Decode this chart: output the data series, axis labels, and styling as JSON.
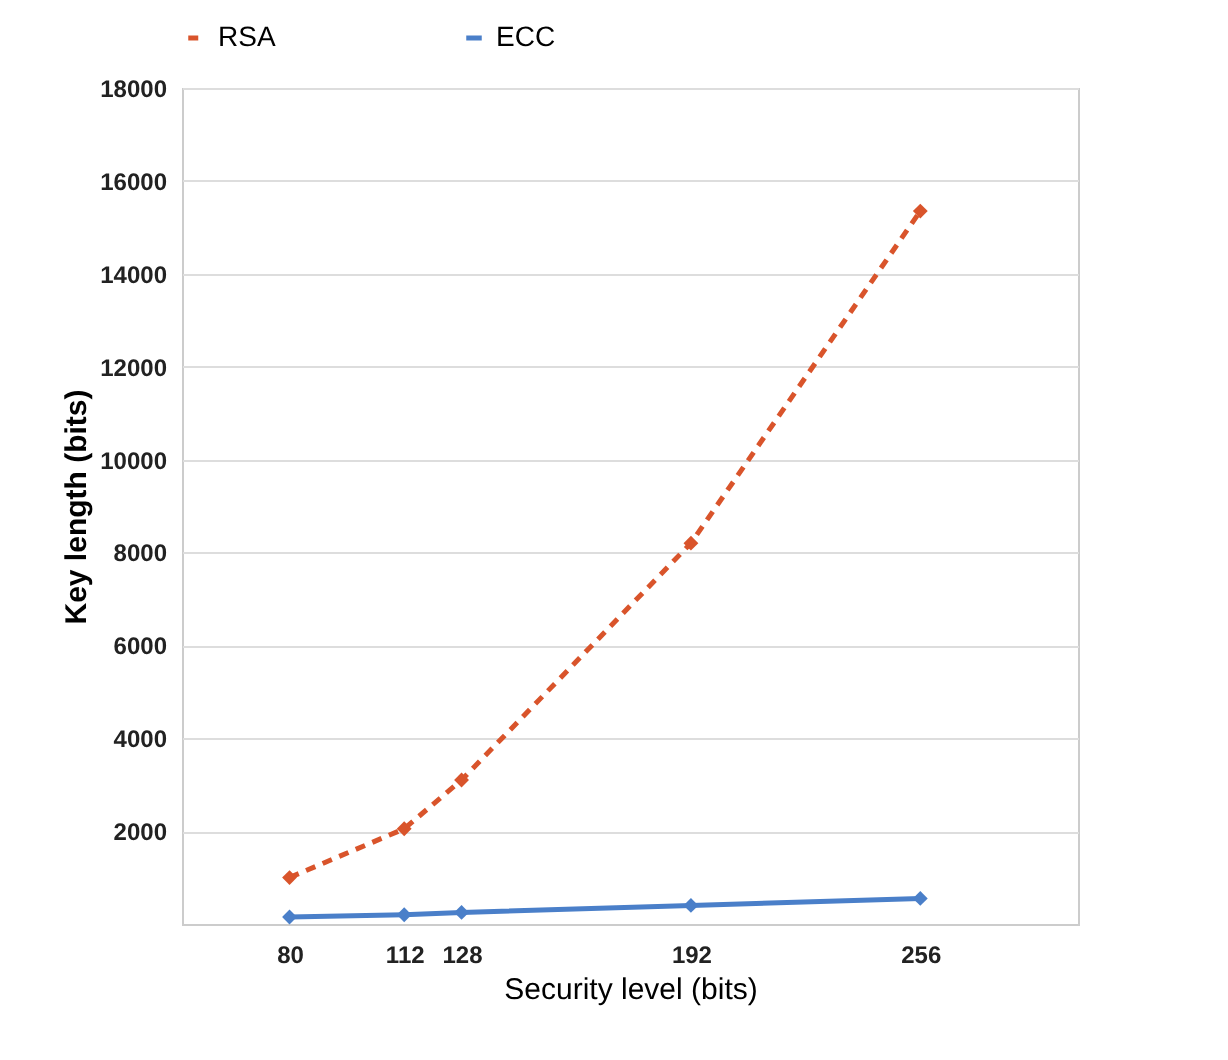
{
  "chart_data": {
    "type": "line",
    "xlabel": "Security level (bits)",
    "ylabel": "Key length (bits)",
    "x": [
      80,
      112,
      128,
      192,
      256
    ],
    "xlim": [
      50,
      300
    ],
    "xticks": [
      80,
      112,
      128,
      192,
      256
    ],
    "ylim": [
      0,
      18000
    ],
    "yticks": [
      2000,
      4000,
      6000,
      8000,
      10000,
      12000,
      14000,
      16000,
      18000
    ],
    "grid": "y",
    "legend": "top",
    "marker": "diamond",
    "series": [
      {
        "name": "RSA",
        "color": "#d9542b",
        "line_style": "dashed",
        "values": [
          1000,
          2050,
          3100,
          8200,
          15350
        ]
      },
      {
        "name": "ECC",
        "color": "#4a7fc9",
        "line_style": "solid",
        "values": [
          150,
          200,
          250,
          400,
          550
        ]
      }
    ]
  }
}
